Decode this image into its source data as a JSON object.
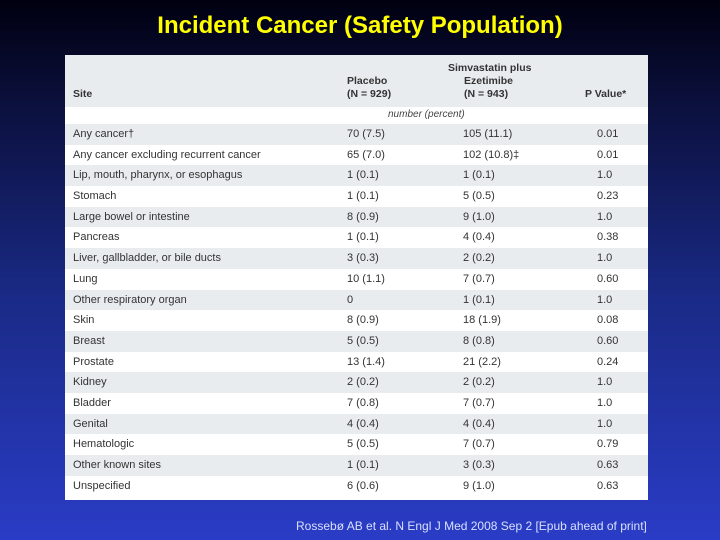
{
  "title": "Incident Cancer (Safety Population)",
  "table": {
    "headers": {
      "site": "Site",
      "placebo_line1": "Placebo",
      "placebo_line2": "(N = 929)",
      "simva_line1": "Simvastatin plus",
      "simva_line2": "Ezetimibe",
      "simva_line3": "(N = 943)",
      "pvalue": "P Value*"
    },
    "unit_label": "number (percent)",
    "rows": [
      {
        "site": "Any cancer†",
        "placebo": "70 (7.5)",
        "simva": "105 (11.1)",
        "p": "0.01"
      },
      {
        "site": "Any cancer excluding recurrent cancer",
        "placebo": "65 (7.0)",
        "simva": "102 (10.8)‡",
        "p": "0.01"
      },
      {
        "site": "Lip, mouth, pharynx, or esophagus",
        "placebo": "1 (0.1)",
        "simva": "1 (0.1)",
        "p": "1.0"
      },
      {
        "site": "Stomach",
        "placebo": "1 (0.1)",
        "simva": "5 (0.5)",
        "p": "0.23"
      },
      {
        "site": "Large bowel or intestine",
        "placebo": "8 (0.9)",
        "simva": "9 (1.0)",
        "p": "1.0"
      },
      {
        "site": "Pancreas",
        "placebo": "1 (0.1)",
        "simva": "4 (0.4)",
        "p": "0.38"
      },
      {
        "site": "Liver, gallbladder, or bile ducts",
        "placebo": "3 (0.3)",
        "simva": "2 (0.2)",
        "p": "1.0"
      },
      {
        "site": "Lung",
        "placebo": "10 (1.1)",
        "simva": "7 (0.7)",
        "p": "0.60"
      },
      {
        "site": "Other respiratory organ",
        "placebo": "0",
        "simva": "1 (0.1)",
        "p": "1.0"
      },
      {
        "site": "Skin",
        "placebo": "8 (0.9)",
        "simva": "18 (1.9)",
        "p": "0.08"
      },
      {
        "site": "Breast",
        "placebo": "5 (0.5)",
        "simva": "8 (0.8)",
        "p": "0.60"
      },
      {
        "site": "Prostate",
        "placebo": "13 (1.4)",
        "simva": "21 (2.2)",
        "p": "0.24"
      },
      {
        "site": "Kidney",
        "placebo": "2 (0.2)",
        "simva": "2 (0.2)",
        "p": "1.0"
      },
      {
        "site": "Bladder",
        "placebo": "7 (0.8)",
        "simva": "7 (0.7)",
        "p": "1.0"
      },
      {
        "site": "Genital",
        "placebo": "4 (0.4)",
        "simva": "4 (0.4)",
        "p": "1.0"
      },
      {
        "site": "Hematologic",
        "placebo": "5 (0.5)",
        "simva": "7 (0.7)",
        "p": "0.79"
      },
      {
        "site": "Other known sites",
        "placebo": "1 (0.1)",
        "simva": "3 (0.3)",
        "p": "0.63"
      },
      {
        "site": "Unspecified",
        "placebo": "6 (0.6)",
        "simva": "9 (1.0)",
        "p": "0.63"
      }
    ]
  },
  "citation": "Rossebø AB et al. N Engl J Med 2008 Sep 2 [Epub ahead of print]",
  "colors": {
    "title": "#ffff00",
    "background_top": "#000010",
    "background_bottom": "#2a3cc6",
    "stripe": "#e9ecef"
  }
}
